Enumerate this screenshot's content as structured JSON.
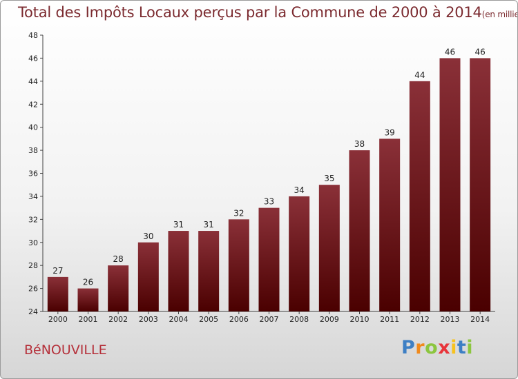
{
  "chart_data": {
    "type": "bar",
    "title": "Total des Impôts Locaux perçus par la Commune de 2000 à 2014",
    "title_unit": "(en milliers d'€)",
    "categories": [
      "2000",
      "2001",
      "2002",
      "2003",
      "2004",
      "2005",
      "2006",
      "2007",
      "2008",
      "2009",
      "2010",
      "2011",
      "2012",
      "2013",
      "2014"
    ],
    "values": [
      27,
      26,
      28,
      30,
      31,
      31,
      32,
      33,
      34,
      35,
      38,
      39,
      44,
      46,
      46
    ],
    "ylim": [
      24,
      48
    ],
    "yticks": [
      24,
      26,
      28,
      30,
      32,
      34,
      36,
      38,
      40,
      42,
      44,
      46,
      48
    ],
    "xlabel": "",
    "ylabel": "",
    "grid": false,
    "bar_color_top": "#8a3038",
    "bar_color_bottom": "#4a0000",
    "title_color": "#7b2a2f"
  },
  "footer": {
    "commune": "BéNOUVILLE",
    "commune_color": "#b5303a",
    "brand_letters": [
      {
        "ch": "P",
        "color": "#3d7fc4"
      },
      {
        "ch": "r",
        "color": "#f08a1c"
      },
      {
        "ch": "o",
        "color": "#8cc63f"
      },
      {
        "ch": "x",
        "color": "#e8343a"
      },
      {
        "ch": "i",
        "color": "#f7c21e"
      },
      {
        "ch": "t",
        "color": "#3d7fc4"
      },
      {
        "ch": "i",
        "color": "#8cc63f"
      }
    ]
  }
}
